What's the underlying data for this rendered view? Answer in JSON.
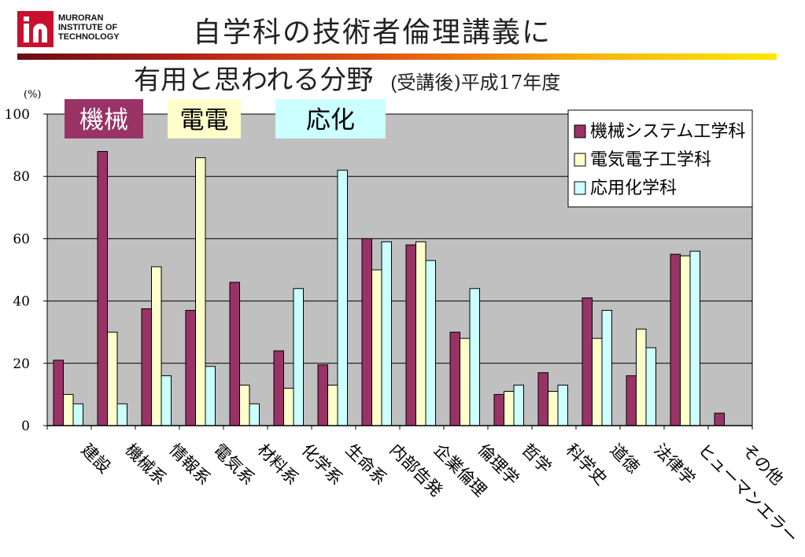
{
  "logo": {
    "line1": "MURORAN",
    "line2": "INSTITUTE OF",
    "line3": "TECHNOLOGY"
  },
  "title": {
    "line1": "自学科の技術者倫理講義に",
    "line2": "有用と思われる分野",
    "sub_open": "(",
    "sub_text": "受講後",
    "sub_close": ")",
    "sub_year": "平成17年度"
  },
  "colors": {
    "mech": "#993366",
    "elec": "#FFFFCC",
    "chem": "#CCFFFF",
    "plot_bg": "#C0C0C0"
  },
  "tags": [
    {
      "label": "機械",
      "color": "#993366",
      "text_color": "#FFFFFF"
    },
    {
      "label": "電電",
      "color": "#FFFFCC",
      "text_color": "#000000"
    },
    {
      "label": "応化",
      "color": "#CCFFFF",
      "text_color": "#000000"
    }
  ],
  "chart_data": {
    "type": "bar",
    "ylabel": "(%)",
    "ylim": [
      0,
      100
    ],
    "yticks": [
      0,
      20,
      40,
      60,
      80,
      100
    ],
    "grid": true,
    "legend_position": "top-right",
    "categories": [
      "建設",
      "機械系",
      "情報系",
      "電気系",
      "材料系",
      "化学系",
      "生命系",
      "内部告発",
      "企業倫理",
      "倫理学",
      "哲学",
      "科学史",
      "道徳",
      "法律学",
      "ヒューマンエラー",
      "その他"
    ],
    "series": [
      {
        "name": "機械システム工学科",
        "values": [
          21,
          88,
          37.5,
          37,
          46,
          24,
          19.5,
          60,
          58,
          30,
          10,
          17,
          41,
          16,
          55,
          4
        ]
      },
      {
        "name": "電気電子工学科",
        "values": [
          10,
          30,
          51,
          86,
          13,
          12,
          13,
          50,
          59,
          28,
          11,
          11,
          28,
          31,
          54.5,
          0
        ]
      },
      {
        "name": "応用化学科",
        "values": [
          7,
          7,
          16,
          19,
          7,
          44,
          82,
          59,
          53,
          44,
          13,
          13,
          37,
          25,
          56,
          0
        ]
      }
    ]
  }
}
